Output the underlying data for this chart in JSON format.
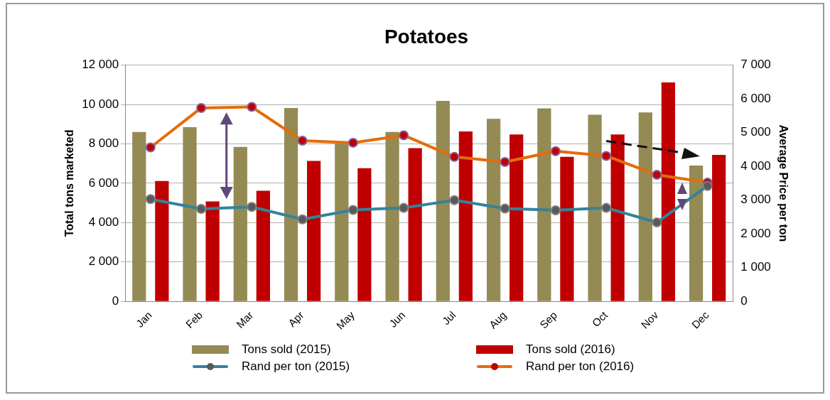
{
  "chart_data": {
    "type": "bar",
    "title": "Potatoes",
    "ylabel": "Total tons marketed",
    "y2label": "Average Price per ton",
    "categories": [
      "Jan",
      "Feb",
      "Mar",
      "Apr",
      "May",
      "Jun",
      "Jul",
      "Aug",
      "Sep",
      "Oct",
      "Nov",
      "Dec"
    ],
    "series": [
      {
        "name": "Tons sold (2015)",
        "color": "#948a54",
        "values": [
          8600,
          8850,
          7850,
          9820,
          8000,
          8600,
          10180,
          9270,
          9800,
          9480,
          9600,
          6900
        ]
      },
      {
        "name": "Tons sold (2016)",
        "color": "#c00000",
        "values": [
          6110,
          5080,
          5620,
          7130,
          6760,
          7780,
          8630,
          8480,
          7340,
          8480,
          11120,
          7440
        ]
      },
      {
        "name": "Rand per ton (2015)",
        "type": "line",
        "axis": "y2",
        "color": "#31849b",
        "marker": "circle",
        "values": [
          3030,
          2740,
          2800,
          2430,
          2710,
          2770,
          3000,
          2750,
          2700,
          2770,
          2340,
          3420
        ]
      },
      {
        "name": "Rand per ton (2016)",
        "type": "line",
        "axis": "y2",
        "color": "#e46c0a",
        "marker": "circle",
        "values": [
          4560,
          5730,
          5760,
          4760,
          4700,
          4920,
          4280,
          4130,
          4450,
          4310,
          3750,
          3520
        ]
      }
    ],
    "ylim": [
      0,
      12000
    ],
    "yticks": [
      {
        "value": 0,
        "label": "0"
      },
      {
        "value": 2000,
        "label": "2 000"
      },
      {
        "value": 4000,
        "label": "4 000"
      },
      {
        "value": 6000,
        "label": "6 000"
      },
      {
        "value": 8000,
        "label": "8 000"
      },
      {
        "value": 10000,
        "label": "10 000"
      },
      {
        "value": 12000,
        "label": "12 000"
      }
    ],
    "y2lim": [
      0,
      7000
    ],
    "y2ticks": [
      {
        "value": 0,
        "label": "0"
      },
      {
        "value": 1000,
        "label": "1 000"
      },
      {
        "value": 2000,
        "label": "2 000"
      },
      {
        "value": 3000,
        "label": "3 000"
      },
      {
        "value": 4000,
        "label": "4 000"
      },
      {
        "value": 5000,
        "label": "5 000"
      },
      {
        "value": 6000,
        "label": "6 000"
      },
      {
        "value": 7000,
        "label": "7 000"
      }
    ],
    "grid": "y",
    "legend": "bottom"
  }
}
